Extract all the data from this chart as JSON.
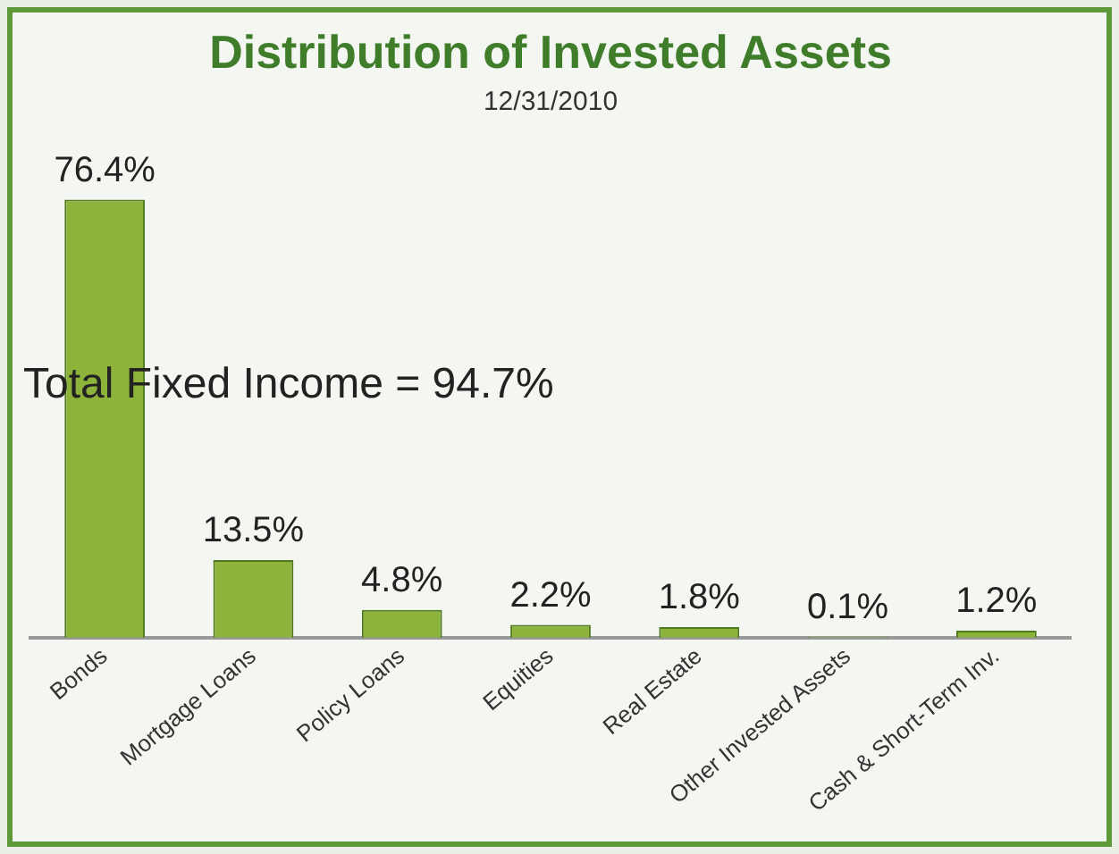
{
  "chart_data": {
    "type": "bar",
    "title": "Distribution of Invested Assets",
    "subtitle": "12/31/2010",
    "categories": [
      "Bonds",
      "Mortgage Loans",
      "Policy Loans",
      "Equities",
      "Real Estate",
      "Other Invested Assets",
      "Cash & Short-Term Inv."
    ],
    "values": [
      76.4,
      13.5,
      4.8,
      2.2,
      1.8,
      0.1,
      1.2
    ],
    "value_labels": [
      "76.4%",
      "13.5%",
      "4.8%",
      "2.2%",
      "1.8%",
      "0.1%",
      "1.2%"
    ],
    "color": "#8db33a",
    "annotations": [
      "Total Fixed Income = 94.7%"
    ],
    "grid": false,
    "legend": false
  }
}
